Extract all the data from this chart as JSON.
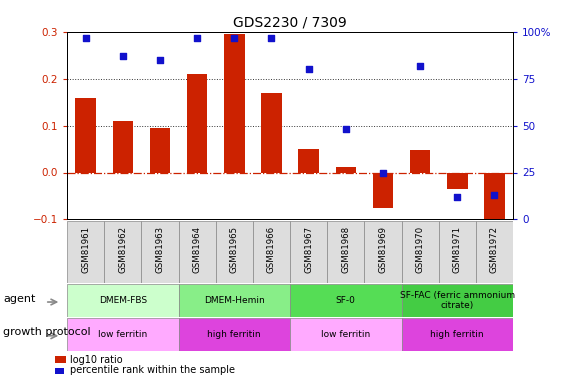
{
  "title": "GDS2230 / 7309",
  "samples": [
    "GSM81961",
    "GSM81962",
    "GSM81963",
    "GSM81964",
    "GSM81965",
    "GSM81966",
    "GSM81967",
    "GSM81968",
    "GSM81969",
    "GSM81970",
    "GSM81971",
    "GSM81972"
  ],
  "log10_ratio": [
    0.16,
    0.11,
    0.095,
    0.21,
    0.295,
    0.17,
    0.05,
    0.012,
    -0.075,
    0.048,
    -0.035,
    -0.105
  ],
  "percentile_rank": [
    97,
    87,
    85,
    97,
    97,
    97,
    80,
    48,
    25,
    82,
    12,
    13
  ],
  "ylim_left": [
    -0.1,
    0.3
  ],
  "ylim_right": [
    0,
    100
  ],
  "yticks_left": [
    -0.1,
    0.0,
    0.1,
    0.2,
    0.3
  ],
  "yticks_right": [
    0,
    25,
    50,
    75,
    100
  ],
  "bar_color": "#cc2200",
  "dot_color": "#1111cc",
  "zero_line_color": "#cc2200",
  "dotted_line_color": "#333333",
  "agent_groups": [
    {
      "label": "DMEM-FBS",
      "start": 0,
      "end": 3,
      "color": "#ccffcc"
    },
    {
      "label": "DMEM-Hemin",
      "start": 3,
      "end": 6,
      "color": "#88ee88"
    },
    {
      "label": "SF-0",
      "start": 6,
      "end": 9,
      "color": "#55dd55"
    },
    {
      "label": "SF-FAC (ferric ammonium\ncitrate)",
      "start": 9,
      "end": 12,
      "color": "#44cc44"
    }
  ],
  "growth_groups": [
    {
      "label": "low ferritin",
      "start": 0,
      "end": 3,
      "color": "#ffaaff"
    },
    {
      "label": "high ferritin",
      "start": 3,
      "end": 6,
      "color": "#dd44dd"
    },
    {
      "label": "low ferritin",
      "start": 6,
      "end": 9,
      "color": "#ffaaff"
    },
    {
      "label": "high ferritin",
      "start": 9,
      "end": 12,
      "color": "#dd44dd"
    }
  ],
  "legend_bar_label": "log10 ratio",
  "legend_dot_label": "percentile rank within the sample",
  "agent_label": "agent",
  "growth_label": "growth protocol"
}
